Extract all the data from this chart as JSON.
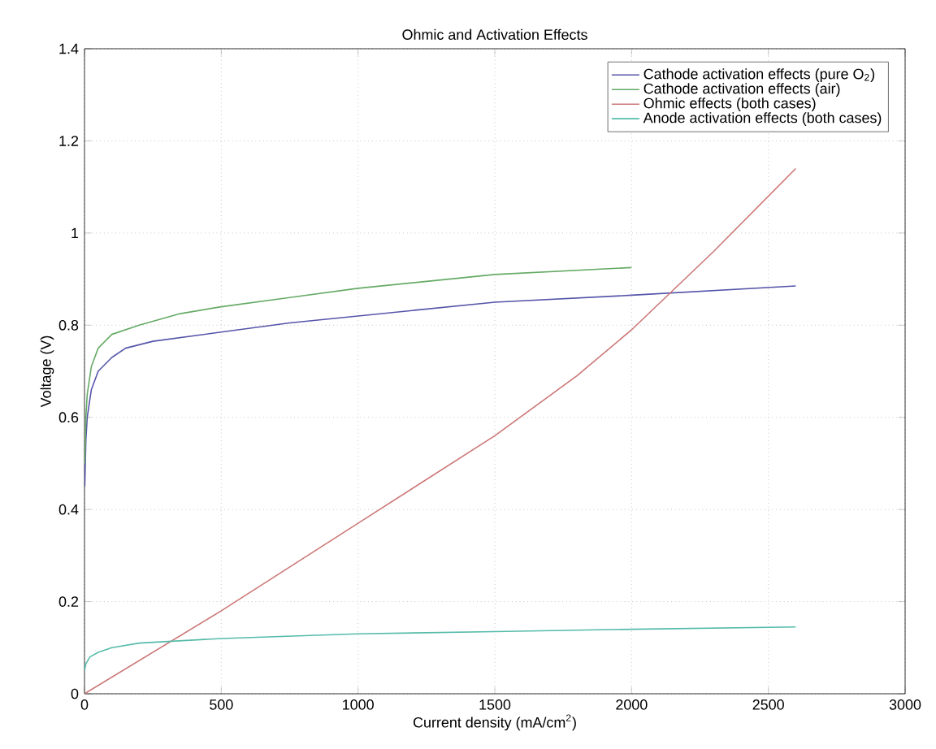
{
  "chart_data": {
    "type": "line",
    "title": "Ohmic and Activation Effects",
    "xlabel": "Current density (mA/cm$^{2}$)",
    "ylabel": "Voltage (V)",
    "xlim": [
      0,
      3000
    ],
    "ylim": [
      0,
      1.4
    ],
    "xticks": [
      0,
      500,
      1000,
      1500,
      2000,
      2500,
      3000
    ],
    "yticks": [
      0,
      0.2,
      0.4,
      0.6,
      0.8,
      1,
      1.2,
      1.4
    ],
    "grid": true,
    "legend": "top right",
    "marker": "none",
    "line_style": "solid",
    "series": [
      {
        "name": "Cathode activation effects (pure O$_{2}$)",
        "color": "#5555aa",
        "x": [
          1,
          5,
          10,
          25,
          50,
          100,
          150,
          250,
          500,
          750,
          1000,
          1500,
          2000,
          2600
        ],
        "values": [
          0.45,
          0.55,
          0.6,
          0.66,
          0.7,
          0.73,
          0.75,
          0.765,
          0.785,
          0.805,
          0.82,
          0.85,
          0.865,
          0.885
        ]
      },
      {
        "name": "Cathode activation effects (air)",
        "color": "#66aa66",
        "x": [
          1,
          5,
          10,
          25,
          50,
          100,
          200,
          350,
          500,
          750,
          1000,
          1500,
          2000
        ],
        "values": [
          0.5,
          0.6,
          0.65,
          0.71,
          0.75,
          0.78,
          0.8,
          0.825,
          0.84,
          0.86,
          0.88,
          0.91,
          0.925
        ]
      },
      {
        "name": "Ohmic effects (both cases)",
        "color": "#cc7777",
        "x": [
          0,
          500,
          1000,
          1500,
          1800,
          2000,
          2300,
          2600
        ],
        "values": [
          0,
          0.18,
          0.37,
          0.56,
          0.69,
          0.79,
          0.96,
          1.14
        ]
      },
      {
        "name": "Anode activation effects (both cases)",
        "color": "#55bbaa",
        "x": [
          0,
          5,
          20,
          50,
          100,
          200,
          500,
          1000,
          1500,
          2000,
          2600
        ],
        "values": [
          0.05,
          0.065,
          0.08,
          0.09,
          0.1,
          0.11,
          0.12,
          0.13,
          0.135,
          0.14,
          0.145
        ]
      }
    ]
  }
}
